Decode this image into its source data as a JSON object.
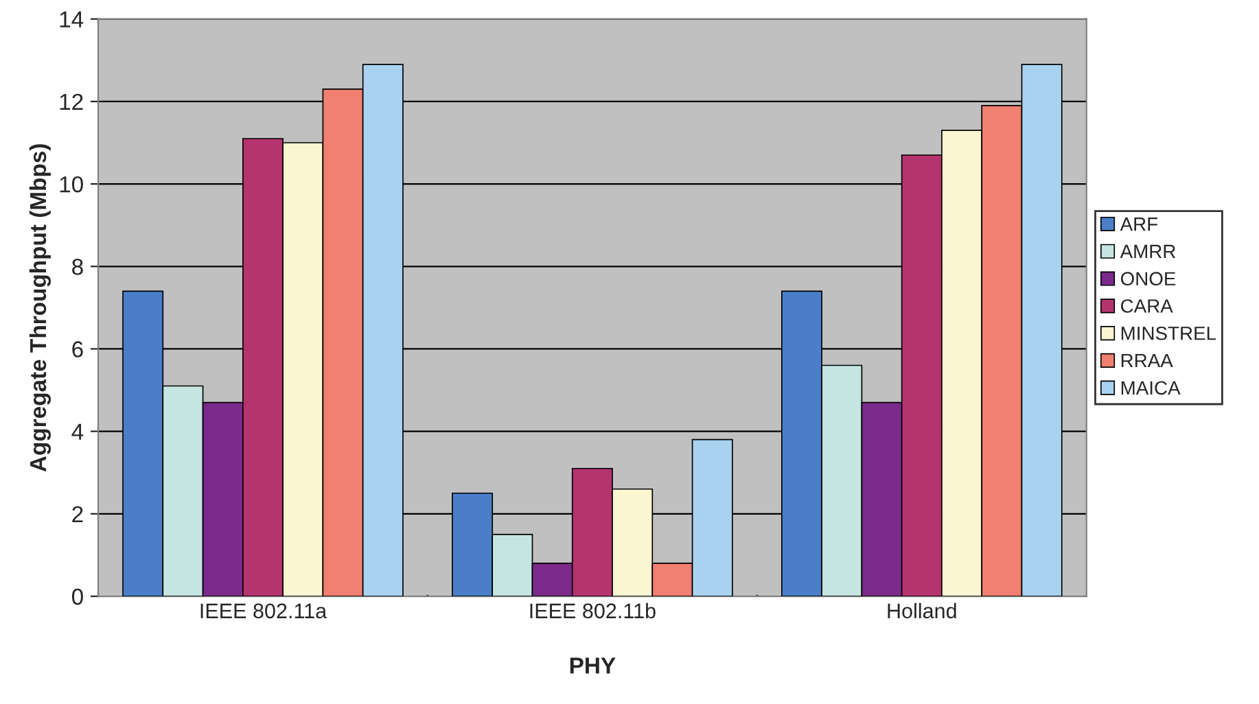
{
  "chart_data": {
    "type": "bar",
    "xlabel": "PHY",
    "ylabel": "Aggregate Throughput (Mbps)",
    "categories": [
      "IEEE 802.11a",
      "IEEE 802.11b",
      "Holland"
    ],
    "series": [
      {
        "name": "ARF",
        "color": "#4a7fc8",
        "values": [
          7.4,
          2.5,
          7.4
        ]
      },
      {
        "name": "AMRR",
        "color": "#c5e6e0",
        "values": [
          5.1,
          1.5,
          5.6
        ]
      },
      {
        "name": "ONOE",
        "color": "#7b2a8c",
        "values": [
          4.7,
          0.8,
          4.7
        ]
      },
      {
        "name": "CARA",
        "color": "#b5346e",
        "values": [
          11.1,
          3.1,
          10.7
        ]
      },
      {
        "name": "MINSTREL",
        "color": "#fbf5d2",
        "values": [
          11.0,
          2.6,
          11.3
        ]
      },
      {
        "name": "RRAA",
        "color": "#f08070",
        "values": [
          12.3,
          0.8,
          11.9
        ]
      },
      {
        "name": "MAICA",
        "color": "#a9d2f0",
        "values": [
          12.9,
          3.8,
          12.9
        ]
      }
    ],
    "ylim": [
      0,
      14
    ],
    "yticks": [
      0,
      2,
      4,
      6,
      8,
      10,
      12,
      14
    ],
    "grid": "y",
    "legend": "right"
  }
}
